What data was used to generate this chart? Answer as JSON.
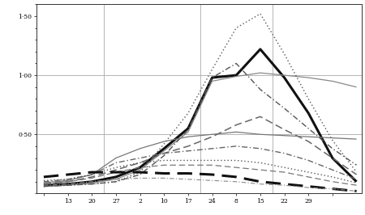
{
  "background_color": "#ffffff",
  "ylim": [
    0.0,
    1.6
  ],
  "xlim": [
    -0.3,
    13.2
  ],
  "vlines_x": [
    2.5,
    6.5,
    9.5
  ],
  "hlines_y": [
    0.5,
    1.0
  ],
  "ytick_positions": [
    0.5,
    1.0,
    1.5
  ],
  "ytick_labels": [
    "0·50",
    "1·00",
    "1·50"
  ],
  "xtick_positions": [
    0,
    1,
    2,
    3,
    4,
    5,
    6,
    7,
    8,
    9,
    10,
    11,
    12
  ],
  "xtick_labels": [
    "",
    "13",
    "20",
    "27",
    "2",
    "10",
    "17",
    "24",
    "8",
    "15",
    "22",
    "29",
    ""
  ],
  "series": [
    {
      "name": "bold_solid",
      "color": "#111111",
      "lw": 2.2,
      "linestyle": "solid",
      "y": [
        0.07,
        0.08,
        0.1,
        0.14,
        0.22,
        0.38,
        0.55,
        0.98,
        1.0,
        1.22,
        0.98,
        0.68,
        0.3,
        0.1
      ]
    },
    {
      "name": "thin_solid_high",
      "color": "#888888",
      "lw": 0.9,
      "linestyle": "solid",
      "y": [
        0.06,
        0.07,
        0.09,
        0.12,
        0.2,
        0.36,
        0.52,
        0.95,
        0.99,
        1.02,
        1.0,
        0.98,
        0.95,
        0.9
      ]
    },
    {
      "name": "dotted_highest",
      "color": "#555555",
      "lw": 1.0,
      "linestyle": "dotted",
      "y": [
        0.06,
        0.07,
        0.08,
        0.1,
        0.18,
        0.42,
        0.68,
        1.05,
        1.4,
        1.52,
        1.18,
        0.8,
        0.45,
        0.18
      ]
    },
    {
      "name": "dash_dot_high",
      "color": "#555555",
      "lw": 1.0,
      "linestyle": "dashdot",
      "y": [
        0.06,
        0.07,
        0.08,
        0.1,
        0.16,
        0.32,
        0.54,
        0.98,
        1.1,
        0.88,
        0.72,
        0.55,
        0.38,
        0.24
      ]
    },
    {
      "name": "dashed_medium_high",
      "color": "#666666",
      "lw": 1.1,
      "linestyle": "dashed",
      "y": [
        0.08,
        0.1,
        0.14,
        0.2,
        0.26,
        0.34,
        0.4,
        0.48,
        0.58,
        0.65,
        0.54,
        0.44,
        0.3,
        0.16
      ]
    },
    {
      "name": "thin_solid_mid",
      "color": "#777777",
      "lw": 0.9,
      "linestyle": "solid",
      "y": [
        0.09,
        0.11,
        0.16,
        0.3,
        0.38,
        0.44,
        0.48,
        0.5,
        0.52,
        0.5,
        0.49,
        0.48,
        0.47,
        0.46
      ]
    },
    {
      "name": "dashdot_mid",
      "color": "#666666",
      "lw": 1.0,
      "linestyle": "dashdot",
      "y": [
        0.1,
        0.12,
        0.16,
        0.26,
        0.3,
        0.34,
        0.36,
        0.38,
        0.4,
        0.38,
        0.34,
        0.28,
        0.2,
        0.12
      ]
    },
    {
      "name": "dotted_mid_low",
      "color": "#555555",
      "lw": 1.0,
      "linestyle": "dotted",
      "y": [
        0.11,
        0.12,
        0.16,
        0.22,
        0.26,
        0.28,
        0.28,
        0.28,
        0.28,
        0.26,
        0.22,
        0.18,
        0.14,
        0.09
      ]
    },
    {
      "name": "dashed_low",
      "color": "#777777",
      "lw": 0.9,
      "linestyle": "dashed",
      "y": [
        0.09,
        0.1,
        0.13,
        0.18,
        0.22,
        0.24,
        0.24,
        0.24,
        0.22,
        0.2,
        0.18,
        0.14,
        0.1,
        0.07
      ]
    },
    {
      "name": "bold_dashed_flat",
      "color": "#111111",
      "lw": 2.2,
      "linestyle": "dashed",
      "y": [
        0.14,
        0.16,
        0.18,
        0.18,
        0.18,
        0.17,
        0.17,
        0.16,
        0.14,
        0.1,
        0.08,
        0.06,
        0.04,
        0.02
      ]
    },
    {
      "name": "dotdash_lowest",
      "color": "#888888",
      "lw": 0.8,
      "linestyle": "dashdot",
      "y": [
        0.07,
        0.08,
        0.1,
        0.12,
        0.13,
        0.13,
        0.12,
        0.11,
        0.1,
        0.08,
        0.07,
        0.05,
        0.04,
        0.02
      ]
    }
  ]
}
